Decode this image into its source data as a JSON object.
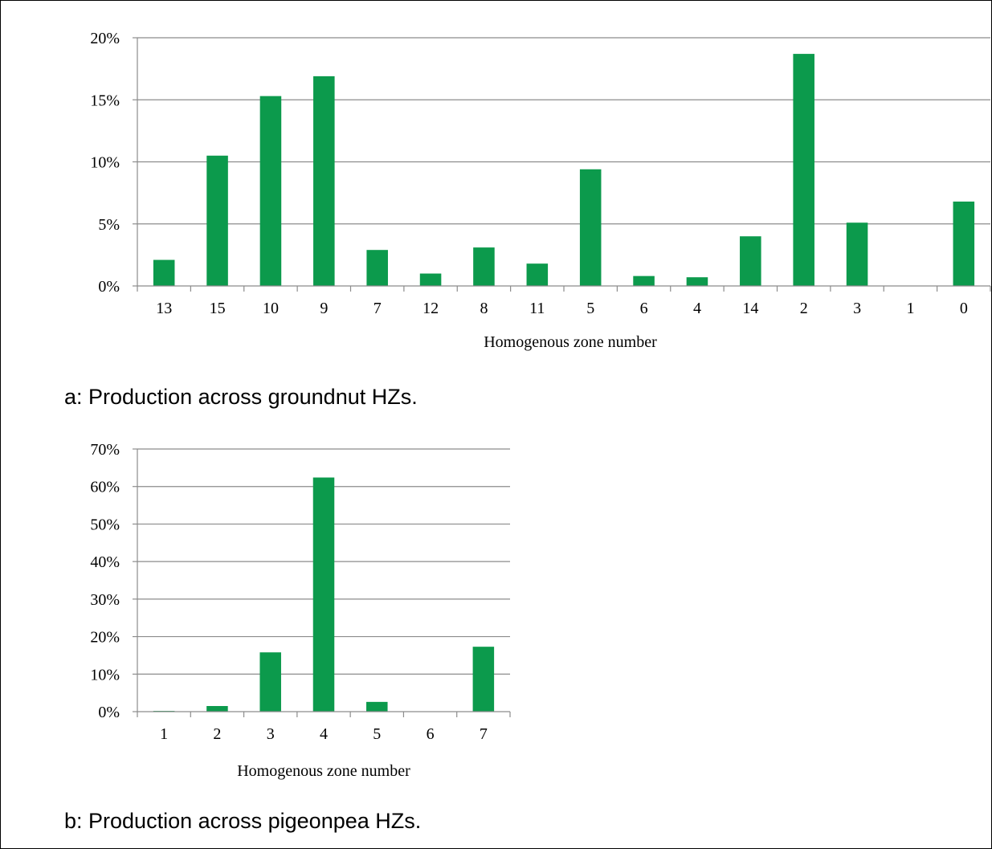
{
  "chart_data": [
    {
      "type": "bar",
      "categories": [
        "13",
        "15",
        "10",
        "9",
        "7",
        "12",
        "8",
        "11",
        "5",
        "6",
        "4",
        "14",
        "2",
        "3",
        "1",
        "0"
      ],
      "values": [
        2.1,
        10.5,
        15.3,
        16.9,
        2.9,
        1.0,
        3.1,
        1.8,
        9.4,
        0.8,
        0.7,
        4.0,
        18.7,
        5.1,
        0.0,
        6.8
      ],
      "xlabel": "Homogenous zone number",
      "ylabel": "",
      "ylim": [
        0,
        20
      ],
      "yticks": [
        "0%",
        "5%",
        "10%",
        "15%",
        "20%"
      ],
      "grid": true,
      "bar_color": "#0c9a4c",
      "caption": "a: Production across groundnut HZs."
    },
    {
      "type": "bar",
      "categories": [
        "1",
        "2",
        "3",
        "4",
        "5",
        "6",
        "7"
      ],
      "values": [
        0.2,
        1.5,
        15.8,
        62.4,
        2.6,
        0.0,
        17.3
      ],
      "xlabel": "Homogenous zone number",
      "ylabel": "",
      "ylim": [
        0,
        70
      ],
      "yticks": [
        "0%",
        "10%",
        "20%",
        "30%",
        "40%",
        "50%",
        "60%",
        "70%"
      ],
      "grid": true,
      "bar_color": "#0c9a4c",
      "caption": "b: Production across pigeonpea HZs."
    }
  ]
}
